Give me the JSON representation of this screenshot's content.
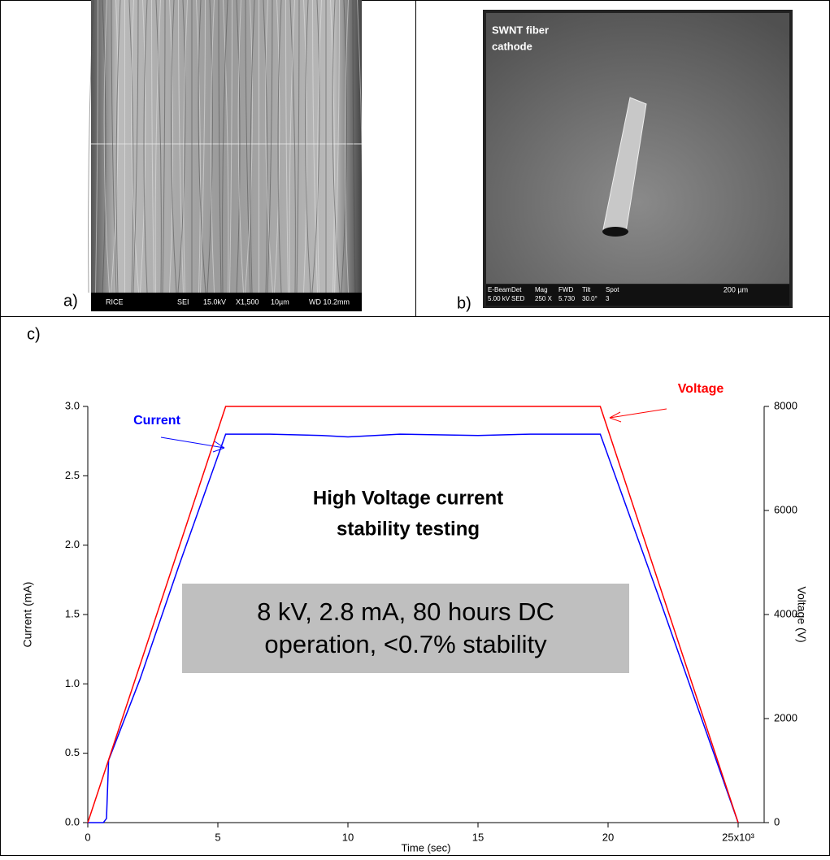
{
  "panels": {
    "a": {
      "label": "a)",
      "info": [
        "RICE",
        "SEI",
        "15.0kV",
        "X1,500",
        "10µm",
        "WD 10.2mm"
      ]
    },
    "b": {
      "label": "b)",
      "caption": [
        "SWNT fiber",
        "cathode"
      ],
      "info": [
        [
          "E-Beam",
          "5.00 kV"
        ],
        [
          "Det",
          "SED"
        ],
        [
          "Mag",
          "250 X"
        ],
        [
          "FWD",
          "5.730"
        ],
        [
          "Tilt",
          "30.0°"
        ],
        [
          "Spot",
          "3"
        ]
      ],
      "scale": "200 µm"
    }
  },
  "chart_data": {
    "type": "line",
    "panel_label": "c)",
    "title": [
      "High Voltage current",
      "stability testing"
    ],
    "annotation": [
      "8 kV, 2.8 mA, 80 hours DC",
      "operation, <0.7% stability"
    ],
    "xlabel": "Time (sec)",
    "ylabel": "Current (mA)",
    "y2label": "Voltage (V)",
    "xlim": [
      0,
      26
    ],
    "xticks": [
      0,
      5,
      10,
      15,
      20,
      {
        "value": 25,
        "label": "25x10³"
      }
    ],
    "ylim": [
      0,
      3
    ],
    "yticks": [
      {
        "value": 0,
        "label": "0.0"
      },
      0.5,
      {
        "value": 1,
        "label": "1.0"
      },
      1.5,
      {
        "value": 2,
        "label": "2.0"
      },
      2.5,
      {
        "value": 3,
        "label": "3.0"
      }
    ],
    "y2lim": [
      0,
      8000
    ],
    "y2ticks": [
      0,
      2000,
      4000,
      6000,
      8000
    ],
    "series": [
      {
        "name": "Current",
        "color": "#0000ff",
        "x": [
          0,
          0.6,
          0.72,
          0.8,
          2,
          3.5,
          5.3,
          7,
          9,
          10,
          12,
          15,
          17,
          19.7,
          22,
          25
        ],
        "values": [
          0,
          0,
          0.03,
          0.45,
          1.03,
          1.85,
          2.8,
          2.8,
          2.79,
          2.78,
          2.8,
          2.79,
          2.8,
          2.8,
          1.6,
          0
        ]
      },
      {
        "name": "Voltage",
        "color": "#ff0000",
        "axis": "y2",
        "x": [
          0,
          5.3,
          19.7,
          25
        ],
        "values": [
          0,
          8000,
          8000,
          0
        ]
      }
    ]
  }
}
